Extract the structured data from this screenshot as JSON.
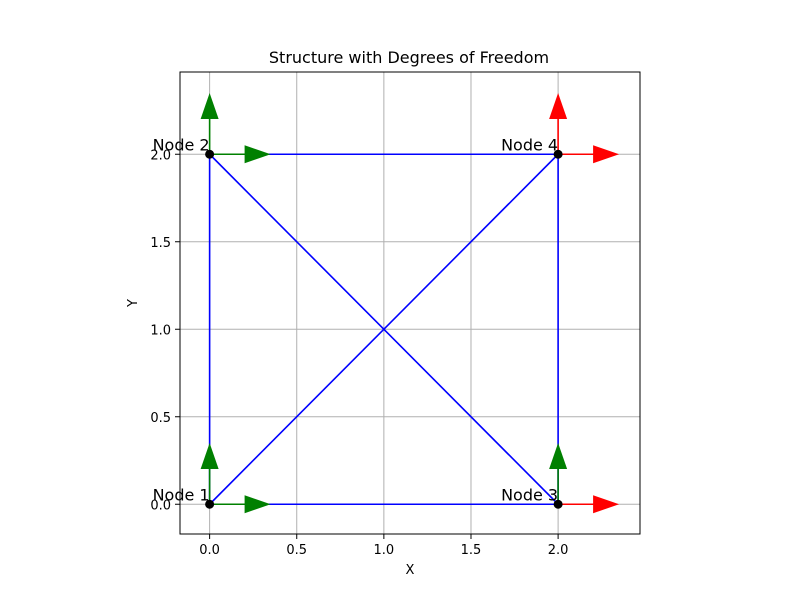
{
  "chart_data": {
    "type": "structure",
    "title": "Structure with Degrees of Freedom",
    "xlabel": "X",
    "ylabel": "Y",
    "xlim": [
      -0.17,
      2.47
    ],
    "ylim": [
      -0.17,
      2.47
    ],
    "grid": true,
    "x_ticks": [
      "0.0",
      "0.5",
      "1.0",
      "1.5",
      "2.0"
    ],
    "y_ticks": [
      "0.0",
      "0.5",
      "1.0",
      "1.5",
      "2.0"
    ],
    "nodes": [
      {
        "label": "Node 1",
        "x": 0,
        "y": 0
      },
      {
        "label": "Node 2",
        "x": 0,
        "y": 2
      },
      {
        "label": "Node 3",
        "x": 2,
        "y": 0
      },
      {
        "label": "Node 4",
        "x": 2,
        "y": 2
      }
    ],
    "members": [
      [
        0,
        0,
        2,
        0
      ],
      [
        0,
        0,
        0,
        2
      ],
      [
        2,
        0,
        2,
        2
      ],
      [
        0,
        2,
        2,
        2
      ],
      [
        0,
        0,
        2,
        2
      ],
      [
        0,
        2,
        2,
        0
      ]
    ],
    "dof_arrows": [
      {
        "x": 0,
        "y": 0,
        "direction": "x",
        "color": "#008000"
      },
      {
        "x": 0,
        "y": 0,
        "direction": "y",
        "color": "#008000"
      },
      {
        "x": 0,
        "y": 2,
        "direction": "x",
        "color": "#008000"
      },
      {
        "x": 0,
        "y": 2,
        "direction": "y",
        "color": "#008000"
      },
      {
        "x": 2,
        "y": 0,
        "direction": "x",
        "color": "#ff0000"
      },
      {
        "x": 2,
        "y": 0,
        "direction": "y",
        "color": "#008000"
      },
      {
        "x": 2,
        "y": 2,
        "direction": "x",
        "color": "#ff0000"
      },
      {
        "x": 2,
        "y": 2,
        "direction": "y",
        "color": "#ff0000"
      }
    ],
    "arrow_length": 0.35,
    "member_color": "#0000ff",
    "node_color": "#000000",
    "grid_color": "#b0b0b0"
  }
}
